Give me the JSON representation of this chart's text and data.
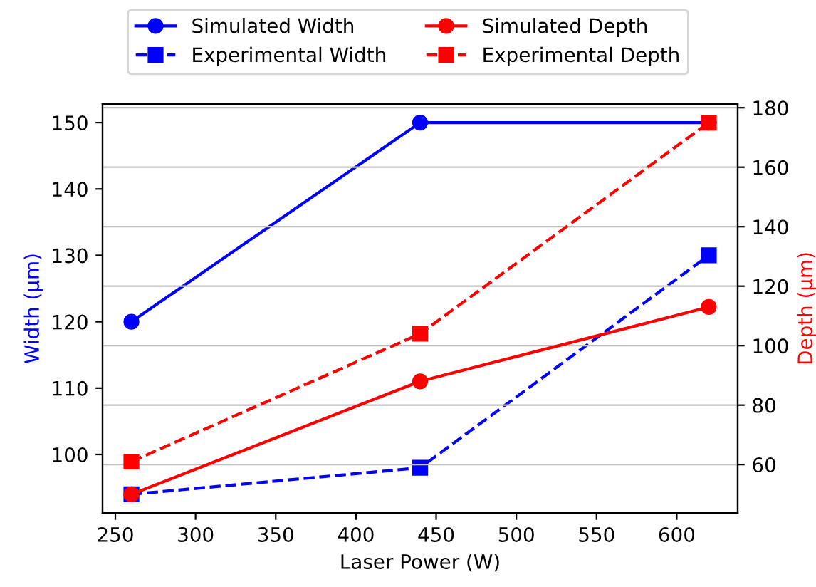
{
  "chart_data": {
    "type": "line",
    "xlabel": "Laser Power (W)",
    "ylabel": "Width (µm)",
    "y2label": "Depth (µm)",
    "x": [
      260,
      440,
      620
    ],
    "series": [
      {
        "name": "Simulated Width",
        "color": "#0000ff",
        "values": [
          120,
          150,
          150
        ],
        "marker": "circle",
        "line_style": "solid"
      },
      {
        "name": "Experimental Width",
        "color": "#0000ff",
        "values": [
          94,
          98,
          130
        ],
        "marker": "square",
        "line_style": "dashed"
      },
      {
        "name": "Simulated Depth",
        "color": "#ff0000",
        "values": [
          50,
          88,
          113
        ],
        "marker": "circle",
        "line_style": "solid",
        "axis": "y2"
      },
      {
        "name": "Experimental Depth",
        "color": "#ff0000",
        "values": [
          61,
          104,
          175
        ],
        "marker": "square",
        "line_style": "dashed",
        "axis": "y2"
      }
    ],
    "xlim": [
      242,
      638
    ],
    "xticks": [
      250,
      300,
      350,
      400,
      450,
      500,
      550,
      600
    ],
    "ylim": [
      91.2,
      152.8
    ],
    "yticks": [
      100,
      110,
      120,
      130,
      140,
      150
    ],
    "y2lim": [
      43.75,
      181.25
    ],
    "y2ticks": [
      60,
      80,
      100,
      120,
      140,
      160,
      180
    ],
    "grid": "y2",
    "legend": "top"
  }
}
